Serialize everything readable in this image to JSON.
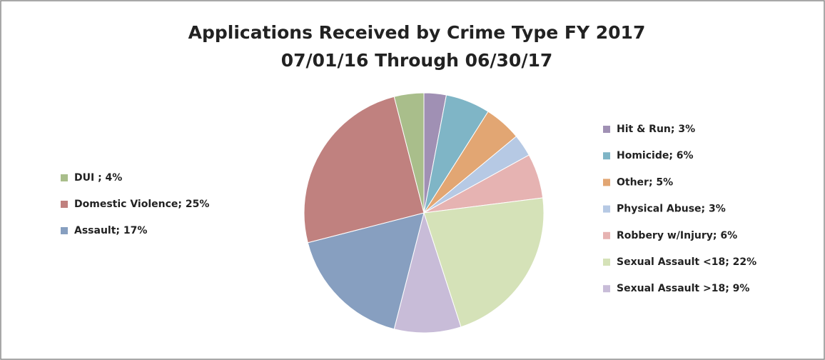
{
  "chart_data": {
    "type": "pie",
    "title": "Applications Received by Crime Type FY 2017",
    "subtitle": "07/01/16 Through 06/30/17",
    "categories": [
      "Hit & Run; 3%",
      "Homicide; 6%",
      "Other; 5%",
      "Physical Abuse; 3%",
      "Robbery w/Injury; 6%",
      "Sexual Assault <18; 22%",
      "Sexual Assault >18; 9%",
      "Assault; 17%",
      "Domestic Violence; 25%",
      "DUI ; 4%"
    ],
    "values": [
      3,
      6,
      5,
      3,
      6,
      22,
      9,
      17,
      25,
      4
    ],
    "colors": [
      "#a090b4",
      "#7fb5c6",
      "#e2a673",
      "#b6c9e4",
      "#e6b3b2",
      "#d5e2b8",
      "#c8bcd8",
      "#879fc0",
      "#c0817f",
      "#a9be8b"
    ]
  }
}
